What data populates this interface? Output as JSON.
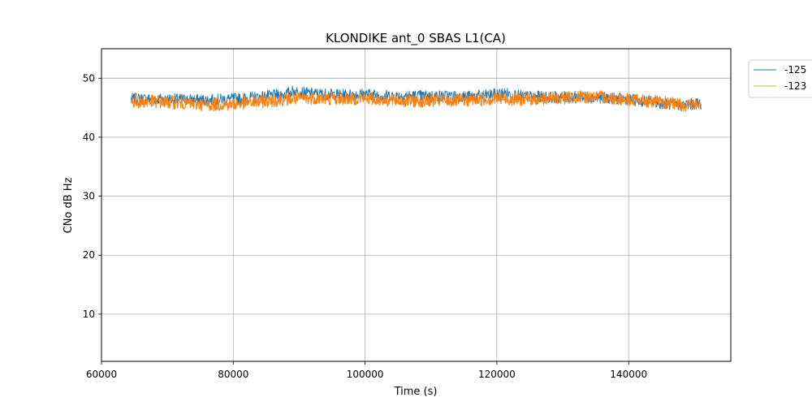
{
  "chart_data": {
    "type": "line",
    "title": "KLONDIKE ant_0 SBAS L1(CA)",
    "xlabel": "Time (s)",
    "ylabel": "CNo dB Hz",
    "xlim": [
      60000,
      155500
    ],
    "ylim": [
      2,
      55
    ],
    "xticks": [
      60000,
      80000,
      100000,
      120000,
      140000
    ],
    "xtick_labels": [
      "60000",
      "80000",
      "100000",
      "120000",
      "140000"
    ],
    "yticks": [
      10,
      20,
      30,
      40,
      50
    ],
    "ytick_labels": [
      "10",
      "20",
      "30",
      "40",
      "50"
    ],
    "grid": true,
    "legend_position": "outside-right-top",
    "series": [
      {
        "name": "-125",
        "color": "#1f77b4",
        "x": [
          64500,
          68000,
          72000,
          76000,
          80000,
          84000,
          88000,
          89000,
          92000,
          96000,
          100000,
          104000,
          108000,
          112000,
          116000,
          120000,
          121000,
          124000,
          128000,
          132000,
          136000,
          140000,
          144000,
          148000,
          151000
        ],
        "y": [
          46.5,
          46.5,
          46.4,
          46.3,
          46.5,
          46.8,
          47.3,
          47.8,
          47.4,
          47.2,
          47.3,
          47.0,
          47.0,
          47.0,
          46.9,
          47.3,
          47.5,
          46.9,
          46.8,
          46.8,
          46.7,
          46.4,
          45.9,
          45.4,
          45.8
        ],
        "noise": 1.0
      },
      {
        "name": "-123",
        "color": "#ff7f0e",
        "legend_color": "#c9b037",
        "x": [
          64500,
          68000,
          72000,
          76000,
          80000,
          84000,
          88000,
          92000,
          96000,
          100000,
          104000,
          108000,
          112000,
          116000,
          120000,
          124000,
          128000,
          132000,
          136000,
          140000,
          144000,
          148000,
          151000
        ],
        "y": [
          46.0,
          46.0,
          45.8,
          45.5,
          45.6,
          46.0,
          46.4,
          46.6,
          46.5,
          46.6,
          46.2,
          46.1,
          46.2,
          46.3,
          46.5,
          46.4,
          46.5,
          46.8,
          46.8,
          46.4,
          46.0,
          45.5,
          45.5
        ],
        "noise": 1.1
      }
    ]
  }
}
